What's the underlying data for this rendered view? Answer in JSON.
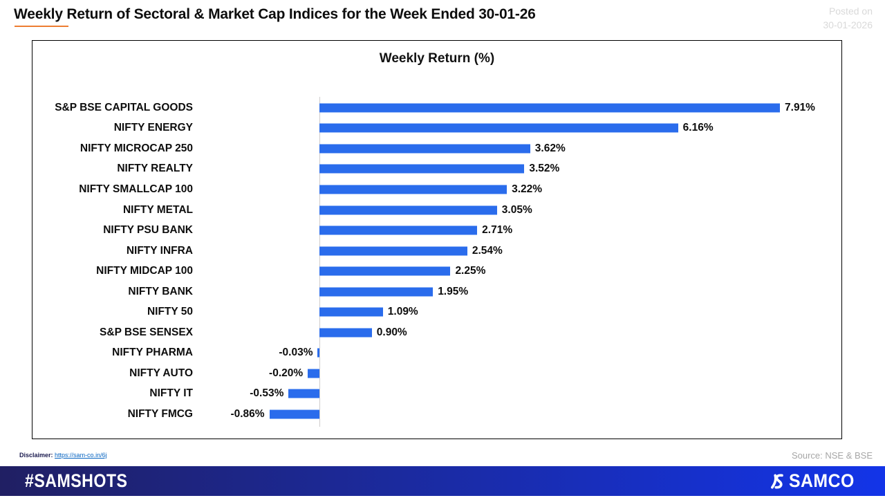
{
  "header": {
    "title": "Weekly Return of Sectoral & Market Cap Indices for the Week Ended 30-01-26",
    "posted_on_line1": "Posted on",
    "posted_on_line2": "30-01-2026"
  },
  "chart_data": {
    "type": "bar",
    "orientation": "horizontal",
    "title": "Weekly Return (%)",
    "categories": [
      "S&P BSE CAPITAL GOODS",
      "NIFTY ENERGY",
      "NIFTY MICROCAP 250",
      "NIFTY REALTY",
      "NIFTY SMALLCAP 100",
      "NIFTY METAL",
      "NIFTY PSU BANK",
      "NIFTY INFRA",
      "NIFTY MIDCAP 100",
      "NIFTY BANK",
      "NIFTY 50",
      "S&P BSE SENSEX",
      "NIFTY PHARMA",
      "NIFTY AUTO",
      "NIFTY IT",
      "NIFTY FMCG"
    ],
    "values": [
      7.91,
      6.16,
      3.62,
      3.52,
      3.22,
      3.05,
      2.71,
      2.54,
      2.25,
      1.95,
      1.09,
      0.9,
      -0.03,
      -0.2,
      -0.53,
      -0.86
    ],
    "labels": [
      "7.91%",
      "6.16%",
      "3.62%",
      "3.52%",
      "3.22%",
      "3.05%",
      "2.71%",
      "2.54%",
      "2.25%",
      "1.95%",
      "1.09%",
      "0.90%",
      "-0.03%",
      "-0.20%",
      "-0.53%",
      "-0.86%"
    ],
    "bar_color": "#2a6cec",
    "axis_color": "#cfcccc",
    "xlim": [
      -1.0,
      9.0
    ],
    "grid": false,
    "legend": "none"
  },
  "notes": {
    "disclaimer_label": "Disclaimer:",
    "disclaimer_link": "https://sam-co.in/6j",
    "source": "Source: NSE & BSE"
  },
  "brandbar": {
    "hashtag": "#SAMSHOTS",
    "brand": "SAMCO"
  },
  "colors": {
    "bar_blue": "#2a6cec",
    "title_underline_orange": "#ED7D31",
    "posted_on_gray": "#d9d9d9",
    "source_gray": "#a6a6a6",
    "link_blue": "#0563C1",
    "footer_gradient_left": "#201f63",
    "footer_gradient_right": "#1334e8"
  }
}
